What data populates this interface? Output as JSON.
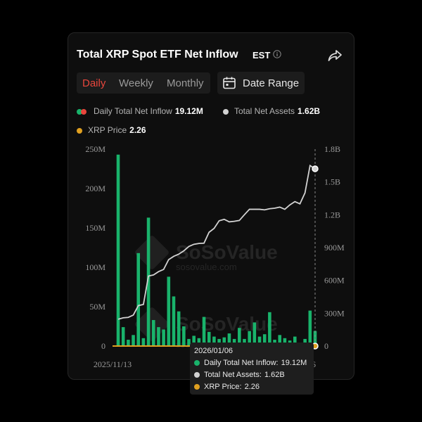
{
  "header": {
    "title": "Total XRP Spot ETF Net Inflow",
    "timezone": "EST"
  },
  "tabs": [
    {
      "label": "Daily",
      "active": true
    },
    {
      "label": "Weekly",
      "active": false
    },
    {
      "label": "Monthly",
      "active": false
    }
  ],
  "date_range_label": "Date Range",
  "legend": {
    "inflow_label": "Daily Total Net Inflow",
    "inflow_value": "19.12M",
    "assets_label": "Total Net Assets",
    "assets_value": "1.62B",
    "price_label": "XRP Price",
    "price_value": "2.26"
  },
  "watermark": {
    "brand": "SoSoValue",
    "url": "sosovalue.com"
  },
  "tooltip": {
    "date": "2026/01/06",
    "inflow_label": "Daily Total Net Inflow:",
    "inflow_value": "19.12M",
    "assets_label": "Total Net Assets:",
    "assets_value": "1.62B",
    "price_label": "XRP Price:",
    "price_value": "2.26"
  },
  "colors": {
    "inflow": "#19b36b",
    "assets": "#d2d2d2",
    "price": "#e0a020",
    "accent": "#e8463c"
  },
  "chart_data": {
    "type": "bar",
    "title": "Total XRP Spot ETF Net Inflow",
    "x_tick_labels": [
      "2025/11/13",
      "6"
    ],
    "y_left": {
      "ticks": [
        "0",
        "50M",
        "100M",
        "150M",
        "200M",
        "250M"
      ],
      "range": [
        0,
        250
      ]
    },
    "y_right": {
      "ticks": [
        "0",
        "300M",
        "600M",
        "900M",
        "1.2B",
        "1.5B",
        "1.8B"
      ],
      "range": [
        0,
        1800
      ]
    },
    "series": [
      {
        "name": "Daily Total Net Inflow",
        "type": "bar",
        "unit": "M",
        "values": [
          243,
          24,
          8,
          14,
          118,
          10,
          163,
          33,
          24,
          21,
          88,
          63,
          44,
          25,
          9,
          13,
          10,
          37,
          18,
          12,
          9,
          11,
          16,
          9,
          23,
          9,
          19,
          30,
          12,
          15,
          43,
          8,
          14,
          10,
          7,
          12,
          4,
          9,
          45,
          19.12
        ]
      },
      {
        "name": "Total Net Assets",
        "type": "line",
        "unit": "M",
        "values": [
          245,
          258,
          262,
          283,
          370,
          380,
          640,
          650,
          680,
          700,
          790,
          820,
          840,
          870,
          910,
          930,
          938,
          940,
          1040,
          1075,
          1145,
          1158,
          1135,
          1140,
          1148,
          1200,
          1250,
          1250,
          1250,
          1245,
          1255,
          1260,
          1270,
          1250,
          1290,
          1320,
          1300,
          1400,
          1650,
          1620
        ]
      },
      {
        "name": "XRP Price",
        "type": "line",
        "values": [
          2.26
        ]
      }
    ]
  }
}
